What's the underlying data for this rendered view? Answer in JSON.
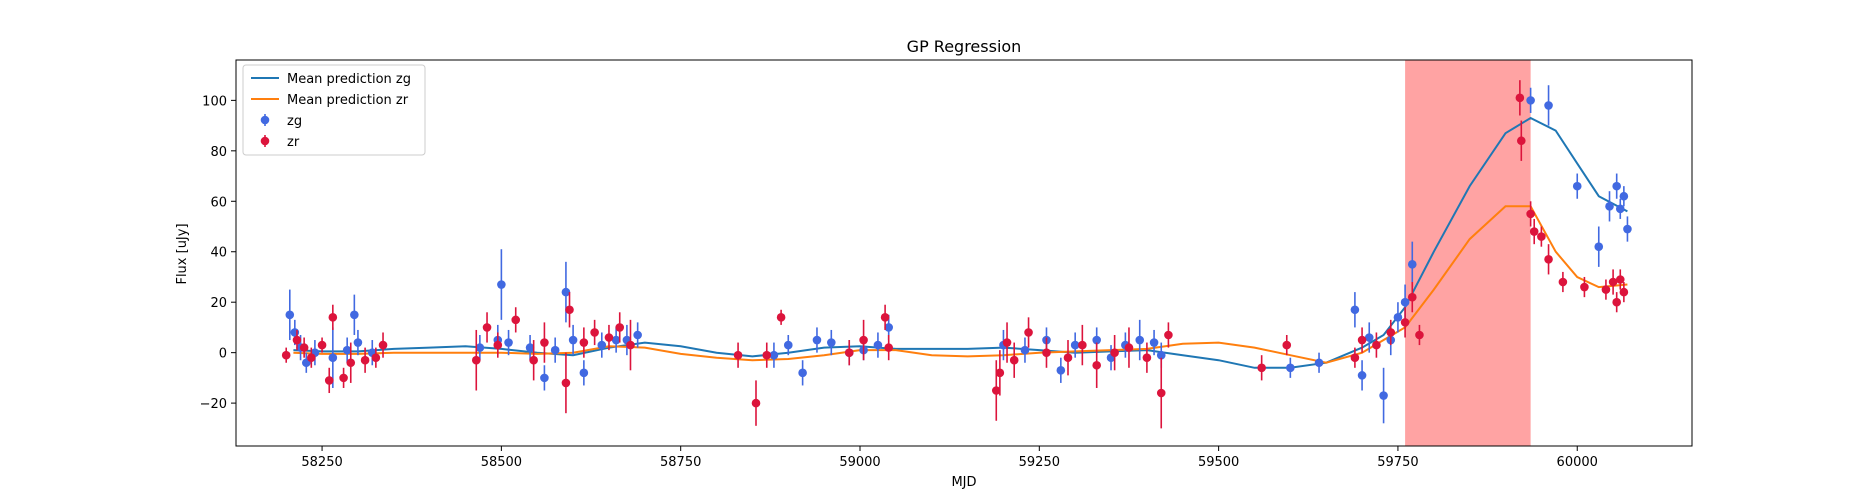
{
  "chart_data": {
    "type": "scatter",
    "title": "GP Regression",
    "xlabel": "MJD",
    "ylabel": "Flux [uJy]",
    "xlim": [
      58130,
      60160
    ],
    "ylim": [
      -37,
      116
    ],
    "x_ticks": [
      "58250",
      "58500",
      "58750",
      "59000",
      "59250",
      "59500",
      "59750",
      "60000"
    ],
    "y_ticks": [
      "−20",
      "0",
      "20",
      "40",
      "60",
      "80",
      "100"
    ],
    "grid": false,
    "legend_position": "top-left",
    "legend": [
      {
        "label": "Mean prediction zg",
        "kind": "line",
        "color": "#1f77b4"
      },
      {
        "label": "Mean prediction zr",
        "kind": "line",
        "color": "#ff7f0e"
      },
      {
        "label": "zg",
        "kind": "errorbar",
        "color": "#4169e1"
      },
      {
        "label": "zr",
        "kind": "errorbar",
        "color": "#dc143c"
      }
    ],
    "shaded_region": {
      "x": [
        59760,
        59935
      ],
      "color": "#ff6666"
    },
    "series": [
      {
        "name": "Mean prediction zg",
        "kind": "line",
        "color": "#1f77b4",
        "x": [
          58210,
          58250,
          58300,
          58350,
          58400,
          58450,
          58500,
          58550,
          58600,
          58650,
          58700,
          58750,
          58800,
          58850,
          58900,
          58950,
          59000,
          59050,
          59100,
          59150,
          59200,
          59250,
          59300,
          59350,
          59400,
          59450,
          59500,
          59550,
          59600,
          59650,
          59700,
          59730,
          59760,
          59800,
          59850,
          59900,
          59935,
          59970,
          60000,
          60030,
          60070
        ],
        "y": [
          1,
          0.5,
          0.5,
          1.5,
          2,
          2.5,
          1.5,
          0,
          -1,
          2,
          4,
          2.5,
          0,
          -1.5,
          0,
          2,
          2.5,
          1.5,
          1.5,
          1.5,
          2,
          1,
          0,
          0.5,
          1,
          -1,
          -3,
          -6,
          -6,
          -4,
          2,
          7,
          18,
          40,
          66,
          87,
          93,
          88,
          75,
          62,
          56
        ]
      },
      {
        "name": "Mean prediction zr",
        "kind": "line",
        "color": "#ff7f0e",
        "x": [
          58210,
          58250,
          58300,
          58350,
          58400,
          58450,
          58500,
          58550,
          58600,
          58650,
          58700,
          58750,
          58800,
          58850,
          58900,
          58950,
          59000,
          59050,
          59100,
          59150,
          59200,
          59250,
          59300,
          59350,
          59400,
          59450,
          59500,
          59550,
          59600,
          59650,
          59700,
          59730,
          59760,
          59800,
          59850,
          59900,
          59935,
          59970,
          60000,
          60030,
          60070
        ],
        "y": [
          0,
          -0.5,
          -0.5,
          0,
          0,
          0,
          0,
          -0.5,
          0,
          2.5,
          2,
          -0.5,
          -2,
          -3,
          -2.5,
          -1,
          1,
          1,
          -1,
          -1.5,
          -1,
          0,
          0.5,
          1,
          1.5,
          3.5,
          4,
          2,
          -1,
          -4,
          0,
          5,
          10,
          25,
          45,
          58,
          58,
          40,
          30,
          26,
          27
        ]
      },
      {
        "name": "zg",
        "kind": "errorbar",
        "color": "#4169e1",
        "x": [
          58205,
          58212,
          58220,
          58228,
          58240,
          58265,
          58285,
          58295,
          58300,
          58320,
          58470,
          58495,
          58500,
          58510,
          58540,
          58560,
          58575,
          58590,
          58600,
          58615,
          58640,
          58660,
          58675,
          58690,
          58880,
          58900,
          58920,
          58940,
          58960,
          58985,
          59005,
          59025,
          59040,
          59200,
          59230,
          59260,
          59280,
          59300,
          59330,
          59350,
          59370,
          59390,
          59410,
          59420,
          59600,
          59640,
          59690,
          59700,
          59710,
          59730,
          59740,
          59750,
          59760,
          59770,
          59935,
          59960,
          60000,
          60030,
          60045,
          60055,
          60060,
          60065,
          60070
        ],
        "y": [
          15,
          8,
          2,
          -4,
          0,
          -2,
          1,
          15,
          4,
          0,
          2,
          5,
          27,
          4,
          2,
          -10,
          1,
          24,
          5,
          -8,
          3,
          5,
          5,
          7,
          -1,
          3,
          -8,
          5,
          4,
          0,
          1,
          3,
          10,
          3,
          1,
          5,
          -7,
          3,
          5,
          -2,
          3,
          5,
          4,
          -1,
          -6,
          -4,
          17,
          -9,
          6,
          -17,
          5,
          14,
          20,
          35,
          100,
          98,
          66,
          42,
          58,
          66,
          57,
          62,
          49
        ],
        "err": [
          10,
          5,
          5,
          4,
          5,
          12,
          5,
          8,
          5,
          5,
          5,
          6,
          14,
          5,
          5,
          5,
          5,
          12,
          6,
          5,
          5,
          5,
          6,
          5,
          5,
          4,
          5,
          5,
          5,
          5,
          4,
          5,
          5,
          6,
          5,
          5,
          5,
          5,
          5,
          5,
          5,
          8,
          5,
          5,
          4,
          4,
          7,
          6,
          6,
          11,
          6,
          6,
          7,
          9,
          5,
          8,
          5,
          8,
          6,
          5,
          4,
          4,
          5
        ]
      },
      {
        "name": "zr",
        "kind": "errorbar",
        "color": "#dc143c",
        "x": [
          58200,
          58215,
          58225,
          58235,
          58250,
          58260,
          58265,
          58280,
          58290,
          58310,
          58325,
          58335,
          58465,
          58480,
          58495,
          58520,
          58545,
          58560,
          58590,
          58595,
          58615,
          58630,
          58650,
          58665,
          58680,
          58830,
          58855,
          58870,
          58890,
          58985,
          59005,
          59035,
          59040,
          59190,
          59195,
          59205,
          59215,
          59235,
          59260,
          59290,
          59310,
          59330,
          59355,
          59375,
          59400,
          59420,
          59430,
          59560,
          59595,
          59690,
          59700,
          59720,
          59740,
          59760,
          59770,
          59780,
          59920,
          59922,
          59935,
          59940,
          59950,
          59960,
          59980,
          60010,
          60040,
          60050,
          60055,
          60060,
          60065
        ],
        "y": [
          -1,
          5,
          2,
          -2,
          3,
          -11,
          14,
          -10,
          -4,
          -3,
          -2,
          3,
          -3,
          10,
          3,
          13,
          -3,
          4,
          -12,
          17,
          4,
          8,
          6,
          10,
          3,
          -1,
          -20,
          -1,
          14,
          0,
          5,
          14,
          2,
          -15,
          -8,
          4,
          -3,
          8,
          0,
          -2,
          3,
          -5,
          0,
          2,
          -2,
          -16,
          7,
          -6,
          3,
          -2,
          5,
          3,
          8,
          12,
          22,
          7,
          101,
          84,
          55,
          48,
          46,
          37,
          28,
          26,
          25,
          28,
          20,
          29,
          24
        ],
        "err": [
          3,
          4,
          4,
          4,
          3,
          5,
          5,
          4,
          8,
          5,
          4,
          5,
          12,
          6,
          5,
          5,
          8,
          8,
          12,
          7,
          6,
          5,
          5,
          6,
          10,
          5,
          9,
          5,
          3,
          5,
          8,
          5,
          5,
          12,
          9,
          8,
          7,
          6,
          6,
          7,
          8,
          9,
          7,
          8,
          6,
          14,
          5,
          5,
          4,
          4,
          5,
          5,
          5,
          6,
          6,
          4,
          7,
          8,
          5,
          5,
          4,
          6,
          4,
          4,
          4,
          5,
          4,
          4,
          4
        ]
      }
    ]
  }
}
